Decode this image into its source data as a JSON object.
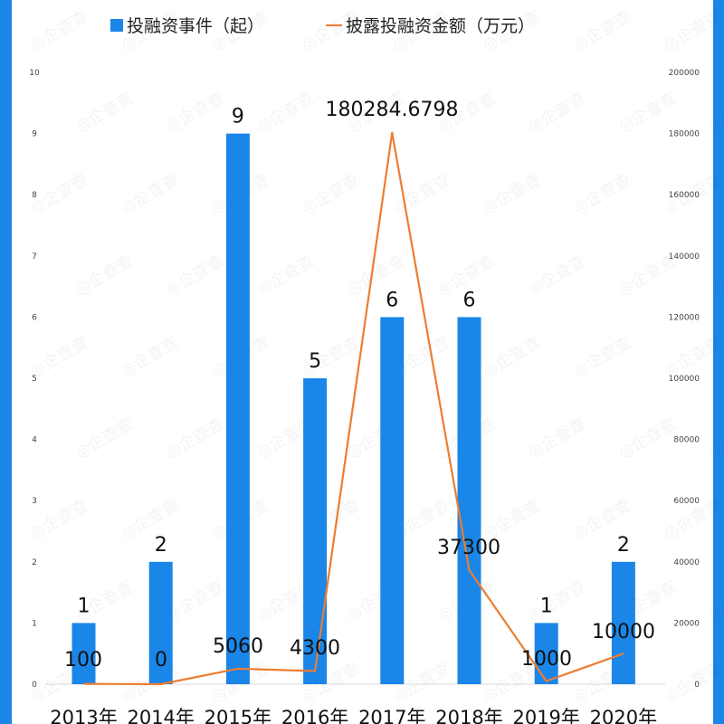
{
  "legend": {
    "bar_label": "投融资事件（起）",
    "line_label": "披露投融资金额（万元）"
  },
  "colors": {
    "bar": "#1a86e8",
    "line": "#ed7d31",
    "frame": "#1a86e8"
  },
  "watermark": "企查查",
  "chart_data": {
    "type": "bar",
    "title": "",
    "categories": [
      "2013年",
      "2014年",
      "2015年",
      "2016年",
      "2017年",
      "2018年",
      "2019年",
      "2020年"
    ],
    "series": [
      {
        "name": "投融资事件（起）",
        "type": "bar",
        "axis": "left",
        "values": [
          1,
          2,
          9,
          5,
          6,
          6,
          1,
          2
        ],
        "labels": [
          "1",
          "2",
          "9",
          "5",
          "6",
          "6",
          "1",
          "2"
        ]
      },
      {
        "name": "披露投融资金额（万元）",
        "type": "line",
        "axis": "right",
        "values": [
          100,
          0,
          5060,
          4300,
          180284.6798,
          37300,
          1000,
          10000
        ],
        "labels": [
          "100",
          "0",
          "5060",
          "4300",
          "180284.6798",
          "37300",
          "1000",
          "10000"
        ]
      }
    ],
    "left_axis": {
      "ticks": [
        "0",
        "1",
        "2",
        "3",
        "4",
        "5",
        "6",
        "7",
        "8",
        "9",
        "10"
      ],
      "ylim": [
        0,
        10
      ]
    },
    "right_axis": {
      "ticks": [
        "0",
        "20000",
        "40000",
        "60000",
        "80000",
        "100000",
        "120000",
        "140000",
        "160000",
        "180000",
        "200000"
      ],
      "ylim": [
        0,
        200000
      ]
    },
    "xlabel": "",
    "ylabel": "",
    "legend_position": "top",
    "grid": false
  }
}
